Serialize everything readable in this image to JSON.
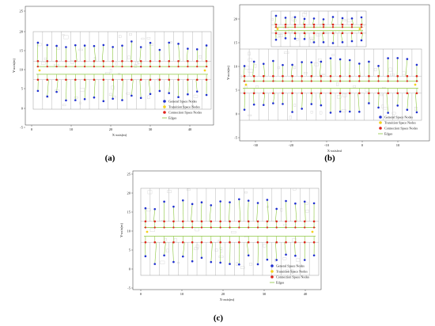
{
  "colors": {
    "general": "#1f2fd0",
    "transition": "#f4d21a",
    "connection": "#e0221b",
    "edges": "#8cc63f",
    "floorplan": "#9a9a9a"
  },
  "legend_labels": {
    "general": "General Space Nodes",
    "transition": "Transition Space Nodes",
    "connection": "Connection Space Nodes",
    "edges": "Edges"
  },
  "panels": [
    {
      "id": "a",
      "caption": "(a)",
      "xlabel": "X-axis(m)",
      "ylabel": "Y-axis(m)",
      "xticks": [
        "0",
        "10",
        "20",
        "30",
        "40"
      ],
      "yticks": [
        "25",
        "20",
        "15",
        "10",
        "5",
        "0",
        "-5"
      ]
    },
    {
      "id": "b",
      "caption": "(b)",
      "xlabel": "X-axis(m)",
      "ylabel": "Y-axis(m)",
      "xticks": [
        "-30",
        "-20",
        "-10",
        "0",
        "10"
      ],
      "yticks": [
        "20",
        "15",
        "10",
        "5",
        "0",
        "-5"
      ]
    },
    {
      "id": "c",
      "caption": "(c)",
      "xlabel": "X-axis(m)",
      "ylabel": "Y-axis(m)",
      "xticks": [
        "0",
        "10",
        "20",
        "30",
        "40"
      ],
      "yticks": [
        "25",
        "20",
        "15",
        "10",
        "5",
        "0",
        "-5"
      ]
    }
  ]
}
